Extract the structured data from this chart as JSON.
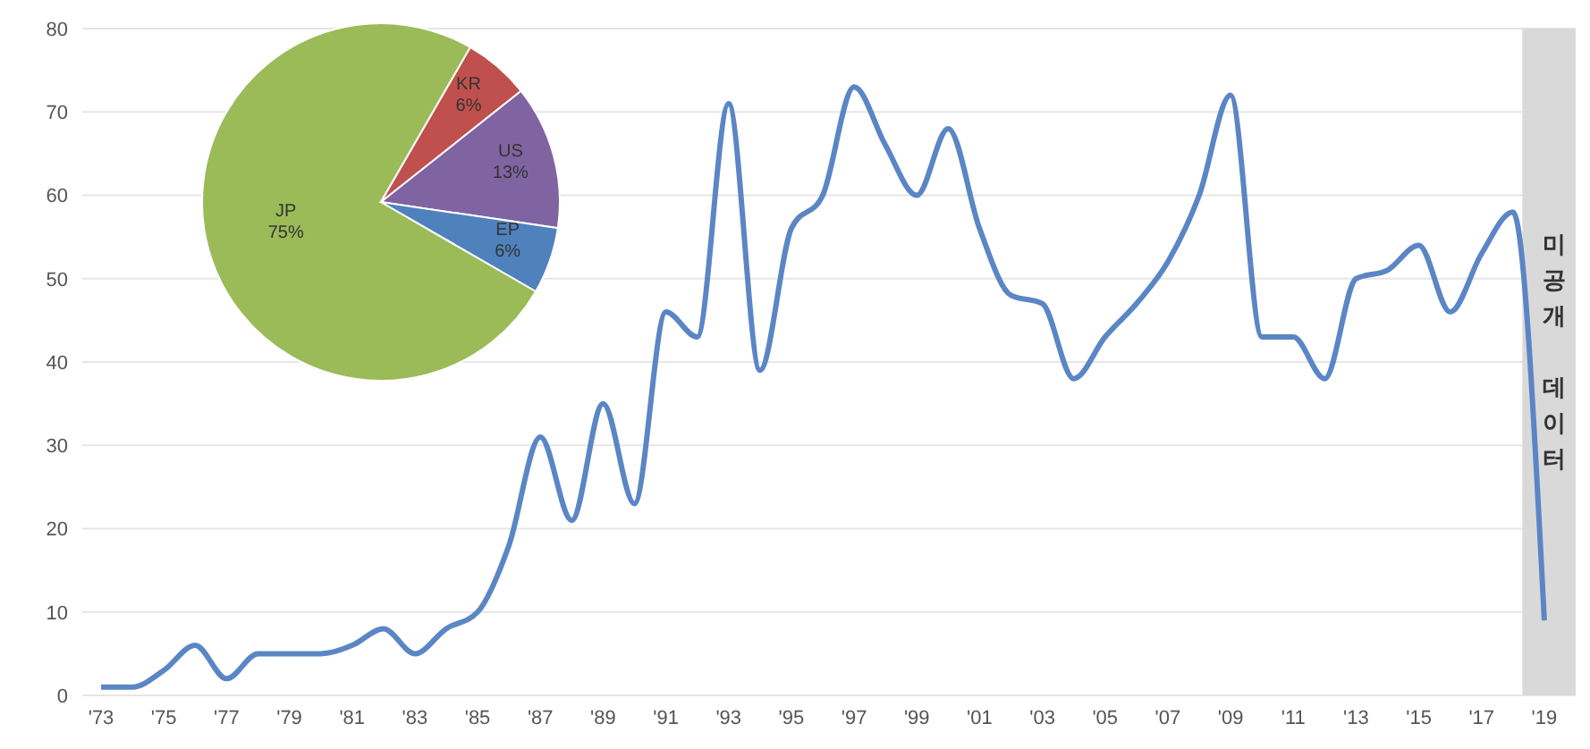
{
  "chart_data": [
    {
      "type": "line",
      "x": [
        1973,
        1974,
        1975,
        1976,
        1977,
        1978,
        1979,
        1980,
        1981,
        1982,
        1983,
        1984,
        1985,
        1986,
        1987,
        1988,
        1989,
        1990,
        1991,
        1992,
        1993,
        1994,
        1995,
        1996,
        1997,
        1998,
        1999,
        2000,
        2001,
        2002,
        2003,
        2004,
        2005,
        2006,
        2007,
        2008,
        2009,
        2010,
        2011,
        2012,
        2013,
        2014,
        2015,
        2016,
        2017,
        2018,
        2019
      ],
      "series": [
        {
          "color": "#5b86c5",
          "values": [
            1,
            1,
            3,
            6,
            2,
            5,
            5,
            5,
            6,
            8,
            5,
            8,
            10,
            18,
            31,
            21,
            35,
            23,
            46,
            43,
            71,
            39,
            56,
            60,
            73,
            66,
            60,
            68,
            56,
            48,
            47,
            38,
            43,
            47,
            52,
            60,
            72,
            43,
            43,
            38,
            50,
            51,
            54,
            46,
            53,
            58,
            9
          ]
        }
      ],
      "xlim": [
        1972.4,
        2020
      ],
      "xticks": [
        {
          "value": 1973,
          "label": "'73"
        },
        {
          "value": 1975,
          "label": "'75"
        },
        {
          "value": 1977,
          "label": "'77"
        },
        {
          "value": 1979,
          "label": "'79"
        },
        {
          "value": 1981,
          "label": "'81"
        },
        {
          "value": 1983,
          "label": "'83"
        },
        {
          "value": 1985,
          "label": "'85"
        },
        {
          "value": 1987,
          "label": "'87"
        },
        {
          "value": 1989,
          "label": "'89"
        },
        {
          "value": 1991,
          "label": "'91"
        },
        {
          "value": 1993,
          "label": "'93"
        },
        {
          "value": 1995,
          "label": "'95"
        },
        {
          "value": 1997,
          "label": "'97"
        },
        {
          "value": 1999,
          "label": "'99"
        },
        {
          "value": 2001,
          "label": "'01"
        },
        {
          "value": 2003,
          "label": "'03"
        },
        {
          "value": 2005,
          "label": "'05"
        },
        {
          "value": 2007,
          "label": "'07"
        },
        {
          "value": 2009,
          "label": "'09"
        },
        {
          "value": 2011,
          "label": "'11"
        },
        {
          "value": 2013,
          "label": "'13"
        },
        {
          "value": 2015,
          "label": "'15"
        },
        {
          "value": 2017,
          "label": "'17"
        },
        {
          "value": 2019,
          "label": "'19"
        }
      ],
      "ylim": [
        0,
        80
      ],
      "yticks": [
        0,
        10,
        20,
        30,
        40,
        50,
        60,
        70,
        80
      ],
      "grid": "y",
      "marker": "none",
      "line_style": "solid",
      "bands": [
        {
          "axis": "x",
          "from": 2018.3,
          "to": 2020,
          "label": "미공개 데이터",
          "color": "#d9d9d9"
        }
      ]
    },
    {
      "type": "pie",
      "categories": [
        "JP",
        "KR",
        "US",
        "EP"
      ],
      "values": [
        75,
        6,
        13,
        6
      ],
      "colors": [
        "#9bbb59",
        "#c0504d",
        "#8064a2",
        "#4f81bd"
      ],
      "value_labels": [
        "75%",
        "6%",
        "13%",
        "6%"
      ]
    }
  ]
}
